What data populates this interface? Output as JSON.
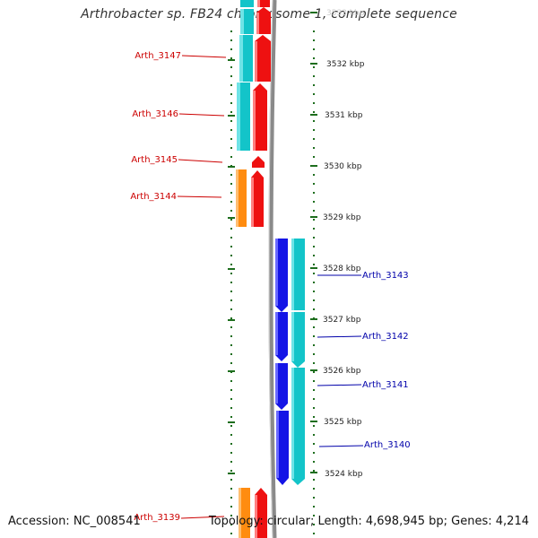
{
  "title": "Arthrobacter sp. FB24 chromosome 1, complete sequence",
  "footer": {
    "accession": "Accession: NC_008541",
    "info": "Topology: circular; Length: 4,698,945 bp; Genes: 4,214"
  },
  "colors": {
    "background": "#ffffff",
    "tick_green": "#1e6e1e",
    "label_red": "#cc0000",
    "label_blue": "#0000aa",
    "backbone": "#8a8a8a",
    "gene_red": "#ee1111",
    "gene_cyan": "#13c4c9",
    "gene_orange": "#ff8c10",
    "gene_blue": "#1414e6"
  },
  "scale": {
    "unit": "kbp",
    "labels": [
      "3533 kbp",
      "3532 kbp",
      "3531 kbp",
      "3530 kbp",
      "3529 kbp",
      "3528 kbp",
      "3527 kbp",
      "3526 kbp",
      "3525 kbp",
      "3524 kbp"
    ]
  },
  "labels": {
    "top_strand": [
      "Arth_3147",
      "Arth_3146",
      "Arth_3145",
      "Arth_3144",
      "Arth_3139"
    ],
    "bottom_strand": [
      "Arth_3143",
      "Arth_3142",
      "Arth_3141",
      "Arth_3140"
    ]
  }
}
